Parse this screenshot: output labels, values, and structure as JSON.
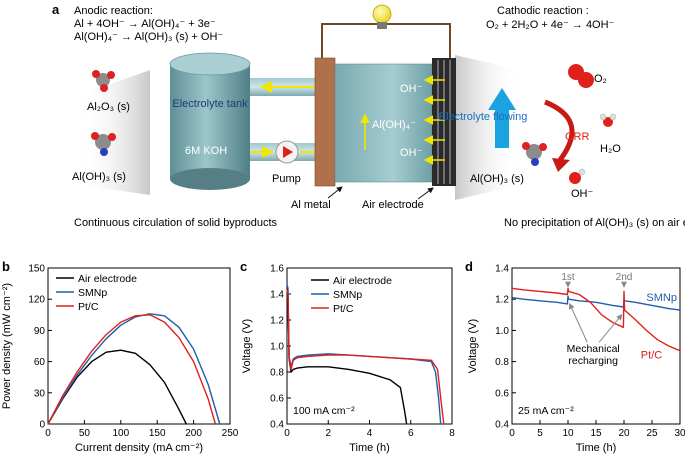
{
  "panel_labels": {
    "a": "a",
    "b": "b",
    "c": "c",
    "d": "d"
  },
  "schematic": {
    "anodic_title": "Anodic reaction:",
    "anodic_eq1": "Al + 4OH⁻ → Al(OH)₄⁻ + 3e⁻",
    "anodic_eq2": "Al(OH)₄⁻ → Al(OH)₃ (s) + OH⁻",
    "cathodic_title": "Cathodic reaction :",
    "cathodic_eq": "O₂ + 2H₂O + 4e⁻ → 4OH⁻",
    "al2o3": "Al₂O₃ (s)",
    "aloh3_left": "Al(OH)₃ (s)",
    "tank": "Electrolyte tank",
    "koh": "6M KOH",
    "pump": "Pump",
    "oh_top": "OH⁻",
    "aloh4": "Al(OH)₄⁻",
    "oh_bottom": "OH⁻",
    "al_metal": "Al metal",
    "air_electrode": "Air electrode",
    "electrolyte_flowing": "Electrolyte flowing",
    "o2": "O₂",
    "orr": "ORR",
    "h2o": "H₂O",
    "aloh3_right": "Al(OH)₃ (s)",
    "oh_right": "OH⁻",
    "caption_left": "Continuous circulation of solid byproducts",
    "caption_right": "No precipitation of Al(OH)₃ (s) on air electrode",
    "colors": {
      "electrolyte": "#7fb3b8",
      "al_metal": "#b0704a",
      "arrow": "#f2e600",
      "flow_arrow": "#1aa3e0",
      "orr": "#e0201a"
    }
  },
  "chart_data": [
    {
      "type": "line",
      "panel": "b",
      "xlabel": "Current density (mA cm⁻²)",
      "ylabel": "Power density (mW cm⁻²)",
      "xlim": [
        0,
        250
      ],
      "ylim": [
        0,
        150
      ],
      "xticks": [
        0,
        50,
        100,
        150,
        200,
        250
      ],
      "yticks": [
        0,
        30,
        60,
        90,
        120,
        150
      ],
      "legend_position": "top-left",
      "series": [
        {
          "name": "Air electrode",
          "color": "#000000",
          "x": [
            0,
            20,
            40,
            60,
            80,
            100,
            120,
            140,
            160,
            180,
            190
          ],
          "y": [
            0,
            24,
            45,
            60,
            69,
            71,
            68,
            57,
            40,
            14,
            0
          ]
        },
        {
          "name": "SMNp",
          "color": "#1f5fa8",
          "x": [
            0,
            20,
            40,
            60,
            80,
            100,
            120,
            140,
            160,
            180,
            200,
            220,
            236
          ],
          "y": [
            0,
            25,
            47,
            66,
            82,
            95,
            103,
            106,
            104,
            93,
            72,
            38,
            0
          ]
        },
        {
          "name": "Pt/C",
          "color": "#e0201a",
          "x": [
            0,
            20,
            40,
            60,
            80,
            100,
            120,
            140,
            160,
            180,
            200,
            220,
            230
          ],
          "y": [
            0,
            27,
            50,
            70,
            86,
            98,
            104,
            105,
            98,
            83,
            60,
            24,
            0
          ]
        }
      ]
    },
    {
      "type": "line",
      "panel": "c",
      "xlabel": "Time (h)",
      "ylabel": "Voltage (V)",
      "xlim": [
        0,
        8
      ],
      "ylim": [
        0.4,
        1.6
      ],
      "xticks": [
        0,
        2,
        4,
        6,
        8
      ],
      "yticks": [
        0.4,
        0.6,
        0.8,
        1.0,
        1.2,
        1.4,
        1.6
      ],
      "annotation": "100 mA cm⁻²",
      "legend_position": "top-right",
      "series": [
        {
          "name": "Air electrode",
          "color": "#000000",
          "x": [
            0,
            0.05,
            0.1,
            0.2,
            0.3,
            0.5,
            1,
            1.5,
            2,
            3,
            4,
            5,
            5.5,
            5.7,
            5.8
          ],
          "y": [
            1.45,
            1.4,
            0.9,
            0.8,
            0.82,
            0.83,
            0.84,
            0.84,
            0.84,
            0.82,
            0.79,
            0.74,
            0.68,
            0.5,
            0.4
          ]
        },
        {
          "name": "SMNp",
          "color": "#1f5fa8",
          "x": [
            0,
            0.05,
            0.1,
            0.2,
            0.3,
            0.5,
            1,
            2,
            3,
            4,
            5,
            6,
            7,
            7.2,
            7.35,
            7.45
          ],
          "y": [
            1.48,
            1.44,
            0.92,
            0.84,
            0.9,
            0.92,
            0.93,
            0.94,
            0.93,
            0.92,
            0.91,
            0.9,
            0.88,
            0.8,
            0.6,
            0.4
          ]
        },
        {
          "name": "Pt/C",
          "color": "#e0201a",
          "x": [
            0,
            0.05,
            0.1,
            0.2,
            0.3,
            0.5,
            1,
            2,
            3,
            4,
            5,
            6,
            7,
            7.3,
            7.45,
            7.6
          ],
          "y": [
            1.43,
            1.4,
            0.9,
            0.82,
            0.89,
            0.91,
            0.92,
            0.93,
            0.93,
            0.92,
            0.91,
            0.9,
            0.89,
            0.82,
            0.6,
            0.4
          ]
        }
      ]
    },
    {
      "type": "line",
      "panel": "d",
      "xlabel": "Time (h)",
      "ylabel": "Voltage (V)",
      "xlim": [
        0,
        30
      ],
      "ylim": [
        0.4,
        1.4
      ],
      "xticks": [
        0,
        5,
        10,
        15,
        20,
        25,
        30
      ],
      "yticks": [
        0.4,
        0.6,
        0.8,
        1.0,
        1.2,
        1.4
      ],
      "annotation": "25 mA cm⁻²",
      "label_first": "1st",
      "label_second": "2nd",
      "label_recharge": "Mechanical recharging",
      "series": [
        {
          "name": "SMNp",
          "color": "#1f5fa8",
          "x": [
            0,
            2,
            5,
            8,
            9.9,
            10,
            10.1,
            12,
            15,
            18,
            19.9,
            20,
            20.1,
            22,
            25,
            28,
            30
          ],
          "y": [
            1.21,
            1.2,
            1.19,
            1.18,
            1.17,
            1.22,
            1.2,
            1.19,
            1.18,
            1.16,
            1.15,
            1.2,
            1.19,
            1.18,
            1.16,
            1.14,
            1.13
          ]
        },
        {
          "name": "Pt/C",
          "color": "#e0201a",
          "x": [
            0,
            2,
            5,
            8,
            9.9,
            10,
            10.1,
            12,
            14,
            16,
            18,
            19.9,
            20,
            20.1,
            22,
            24,
            26,
            28,
            30
          ],
          "y": [
            1.27,
            1.26,
            1.25,
            1.24,
            1.23,
            1.27,
            1.25,
            1.23,
            1.18,
            1.1,
            1.05,
            1.02,
            1.25,
            1.13,
            1.07,
            1.0,
            0.94,
            0.9,
            0.87
          ]
        }
      ]
    }
  ]
}
